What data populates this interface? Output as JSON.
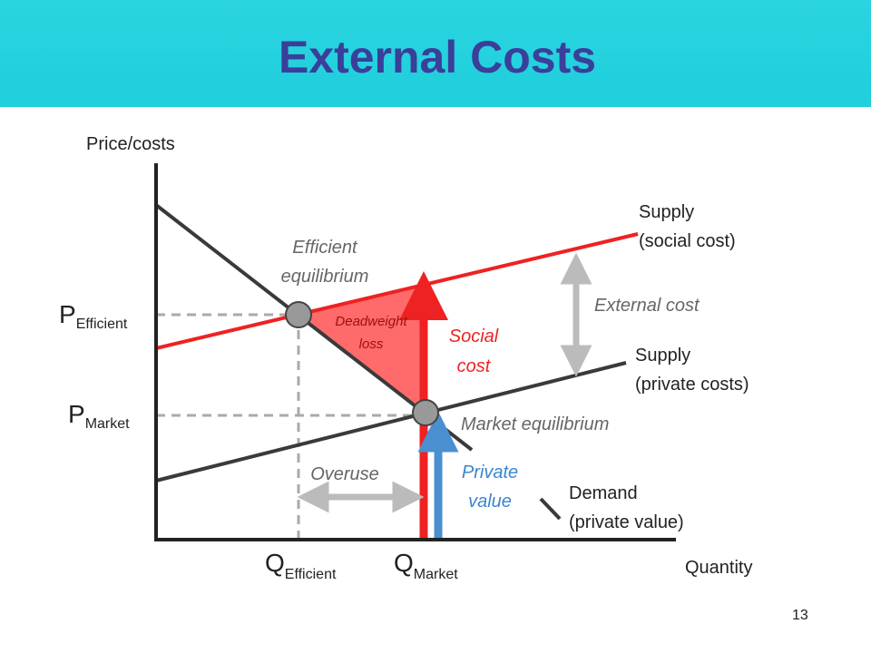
{
  "header": {
    "title": "External Costs"
  },
  "axes": {
    "y_label": "Price/costs",
    "x_label": "Quantity"
  },
  "curves": {
    "social_supply": [
      "Supply",
      "(social cost)"
    ],
    "private_supply": [
      "Supply",
      "(private costs)"
    ],
    "demand": [
      "Demand",
      "(private value)"
    ]
  },
  "annotations": {
    "efficient_equilibrium": [
      "Efficient",
      "equilibrium"
    ],
    "market_equilibrium": "Market equilibrium",
    "external_cost": "External cost",
    "deadweight_loss": [
      "Deadweight",
      "loss"
    ],
    "social_cost": [
      "Social",
      "cost"
    ],
    "private_value": [
      "Private",
      "value"
    ],
    "overuse": "Overuse"
  },
  "axis_marks": {
    "p_efficient": {
      "symbol": "P",
      "subscript": "Efficient"
    },
    "p_market": {
      "symbol": "P",
      "subscript": "Market"
    },
    "q_efficient": {
      "symbol": "Q",
      "subscript": "Efficient"
    },
    "q_market": {
      "symbol": "Q",
      "subscript": "Market"
    }
  },
  "page_number": "13"
}
